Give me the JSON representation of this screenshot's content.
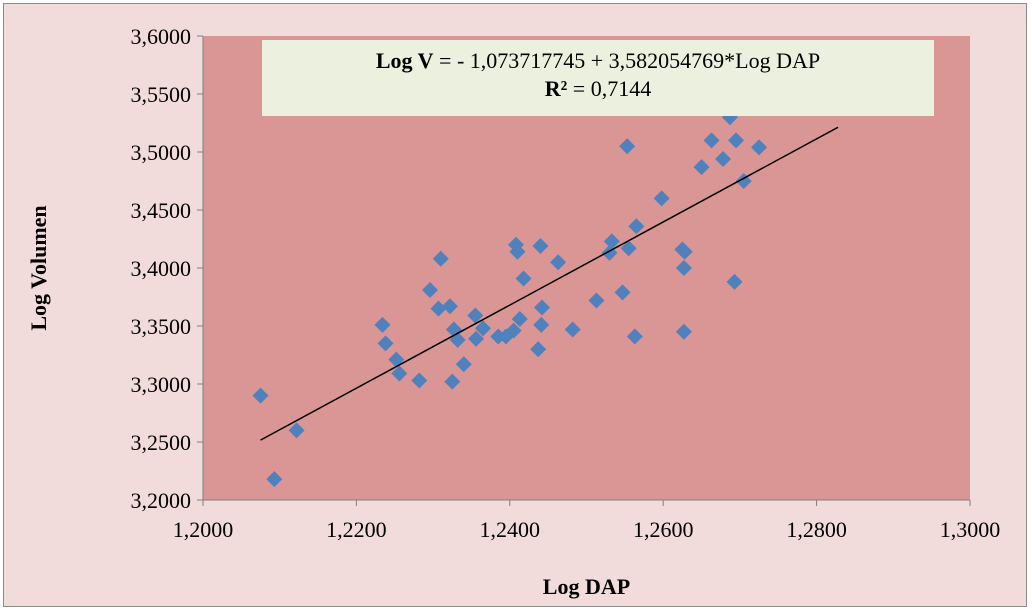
{
  "chart_data": {
    "type": "scatter",
    "xlabel": "Log DAP",
    "ylabel": "Log Volumen",
    "xlim": [
      1.2,
      1.3
    ],
    "ylim": [
      3.2,
      3.6
    ],
    "x_ticks": [
      "1,2000",
      "1,2200",
      "1,2400",
      "1,2600",
      "1,2800",
      "1,3000"
    ],
    "y_ticks": [
      "3,2000",
      "3,2500",
      "3,3000",
      "3,3500",
      "3,4000",
      "3,4500",
      "3,5000",
      "3,5500",
      "3,6000"
    ],
    "grid": false,
    "plot_area_color": "#d99694",
    "marker_color": "#4f81bd",
    "trendline": {
      "type": "linear",
      "intercept": -1.073717745,
      "slope": 3.582054769,
      "x_range": [
        1.2075,
        1.2828
      ],
      "color": "#000000"
    },
    "equation": {
      "lhs": "Log V",
      "rhs": " = - 1,073717745 + 3,582054769*Log DAP",
      "r2_label": "R²",
      "r2_value": " = 0,7144"
    },
    "points": [
      [
        1.2075,
        3.29
      ],
      [
        1.2093,
        3.218
      ],
      [
        1.2122,
        3.26
      ],
      [
        1.2234,
        3.351
      ],
      [
        1.2238,
        3.335
      ],
      [
        1.2252,
        3.321
      ],
      [
        1.2256,
        3.309
      ],
      [
        1.2282,
        3.303
      ],
      [
        1.2296,
        3.381
      ],
      [
        1.2307,
        3.365
      ],
      [
        1.231,
        3.408
      ],
      [
        1.2322,
        3.367
      ],
      [
        1.2325,
        3.302
      ],
      [
        1.2327,
        3.347
      ],
      [
        1.2332,
        3.338
      ],
      [
        1.234,
        3.317
      ],
      [
        1.2355,
        3.359
      ],
      [
        1.2356,
        3.339
      ],
      [
        1.2365,
        3.348
      ],
      [
        1.2385,
        3.341
      ],
      [
        1.2395,
        3.341
      ],
      [
        1.2405,
        3.346
      ],
      [
        1.2408,
        3.42
      ],
      [
        1.241,
        3.414
      ],
      [
        1.2413,
        3.356
      ],
      [
        1.2418,
        3.391
      ],
      [
        1.2437,
        3.33
      ],
      [
        1.244,
        3.419
      ],
      [
        1.2441,
        3.351
      ],
      [
        1.2442,
        3.366
      ],
      [
        1.2463,
        3.405
      ],
      [
        1.2482,
        3.347
      ],
      [
        1.2513,
        3.372
      ],
      [
        1.253,
        3.413
      ],
      [
        1.2533,
        3.423
      ],
      [
        1.2547,
        3.379
      ],
      [
        1.2553,
        3.505
      ],
      [
        1.2555,
        3.417
      ],
      [
        1.2563,
        3.341
      ],
      [
        1.2565,
        3.436
      ],
      [
        1.2598,
        3.46
      ],
      [
        1.2625,
        3.416
      ],
      [
        1.2627,
        3.345
      ],
      [
        1.2627,
        3.4
      ],
      [
        1.2628,
        3.414
      ],
      [
        1.265,
        3.487
      ],
      [
        1.2663,
        3.51
      ],
      [
        1.2678,
        3.494
      ],
      [
        1.2687,
        3.53
      ],
      [
        1.2693,
        3.388
      ],
      [
        1.2695,
        3.51
      ],
      [
        1.2705,
        3.475
      ],
      [
        1.2725,
        3.504
      ]
    ]
  }
}
